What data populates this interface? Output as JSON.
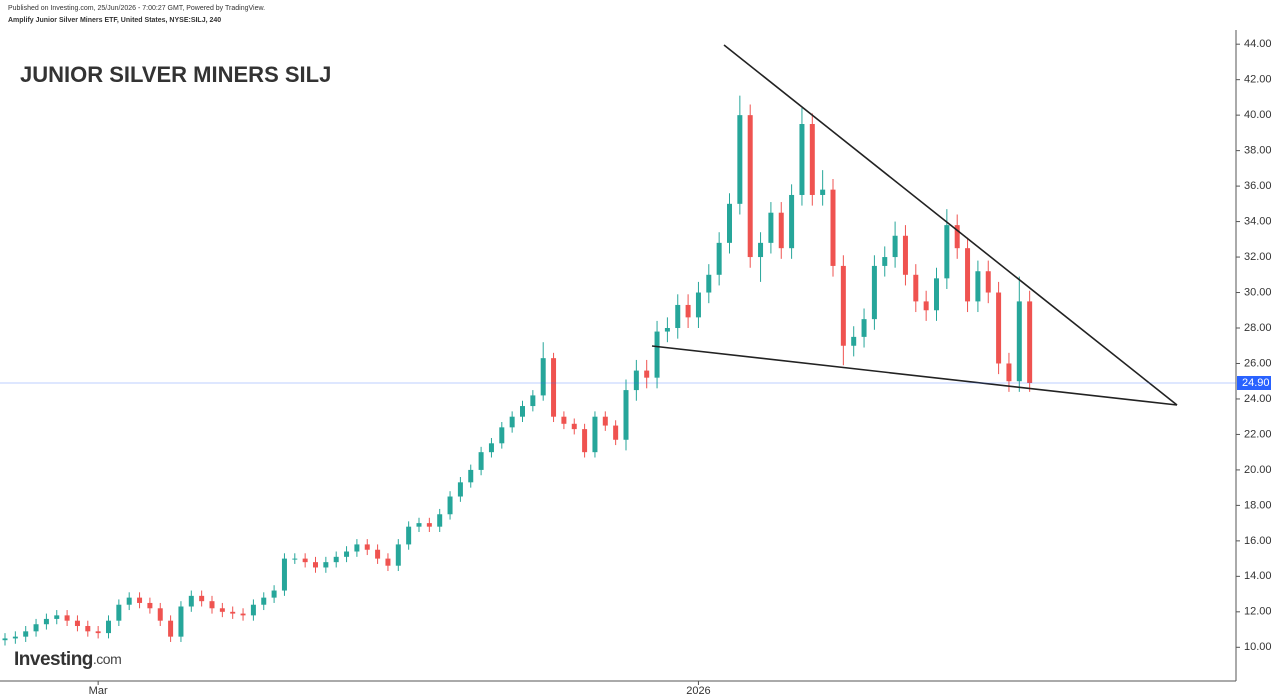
{
  "header": {
    "published": "Published on Investing.com, 25/Jun/2026 - 7:00:27 GMT, Powered by TradingView.",
    "instrument": "Amplify Junior Silver Miners ETF, United States, NYSE:SILJ, 240"
  },
  "logo": {
    "brand": "Investing",
    "suffix": ".com"
  },
  "chart_data": {
    "type": "candlestick",
    "title": "JUNIOR SILVER MINERS SILJ",
    "categories": [
      null,
      null,
      null,
      null,
      null,
      null,
      null,
      null,
      null,
      "Mar",
      null,
      null,
      null,
      null,
      null,
      null,
      null,
      null,
      null,
      null,
      null,
      null,
      null,
      null,
      null,
      null,
      null,
      null,
      null,
      null,
      null,
      null,
      null,
      null,
      null,
      null,
      null,
      null,
      null,
      null,
      null,
      null,
      null,
      null,
      null,
      null,
      null,
      null,
      null,
      null,
      null,
      null,
      null,
      null,
      null,
      null,
      null,
      null,
      null,
      null,
      null,
      null,
      null,
      null,
      null,
      null,
      null,
      "2026",
      null,
      null,
      null,
      null,
      null,
      null,
      null,
      null,
      null,
      null,
      null,
      null,
      null,
      null,
      null,
      null,
      null,
      null,
      null,
      null,
      null,
      null,
      null,
      null,
      null,
      null,
      null,
      null,
      null,
      null,
      null,
      null
    ],
    "open": [
      10.4,
      10.5,
      10.6,
      10.9,
      11.3,
      11.6,
      11.8,
      11.5,
      11.2,
      10.9,
      10.8,
      11.5,
      12.4,
      12.8,
      12.5,
      12.2,
      11.5,
      10.6,
      12.3,
      12.9,
      12.6,
      12.2,
      12.0,
      11.9,
      11.8,
      12.4,
      12.8,
      13.2,
      15.0,
      15.0,
      14.8,
      14.5,
      14.8,
      15.1,
      15.4,
      15.8,
      15.5,
      15.0,
      14.6,
      15.8,
      16.8,
      17.0,
      16.8,
      17.5,
      18.5,
      19.3,
      20.0,
      21.0,
      21.5,
      22.4,
      23.0,
      23.6,
      24.2,
      26.3,
      23.0,
      22.6,
      22.3,
      21.0,
      23.0,
      22.5,
      21.7,
      24.5,
      25.6,
      25.2,
      27.8,
      28.0,
      29.3,
      28.6,
      30.0,
      31.0,
      32.8,
      35.0,
      40.0,
      32.0,
      32.8,
      34.5,
      32.5,
      35.5,
      39.5,
      35.5,
      35.8,
      31.5,
      27.0,
      27.5,
      28.5,
      31.5,
      32.0,
      33.2,
      31.0,
      29.5,
      29.0,
      30.8,
      33.8,
      32.5,
      29.5,
      31.2,
      30.0,
      26.0,
      25.0,
      29.5
    ],
    "high": [
      10.8,
      10.9,
      11.2,
      11.6,
      11.9,
      12.1,
      12.1,
      11.8,
      11.5,
      11.2,
      11.8,
      12.7,
      13.1,
      13.1,
      12.8,
      12.5,
      11.8,
      12.6,
      13.2,
      13.2,
      12.9,
      12.5,
      12.3,
      12.2,
      12.7,
      13.1,
      13.5,
      15.3,
      15.3,
      15.3,
      15.1,
      15.1,
      15.4,
      15.7,
      16.1,
      16.1,
      15.8,
      15.3,
      16.1,
      17.1,
      17.3,
      17.3,
      17.8,
      18.8,
      19.6,
      20.3,
      21.3,
      21.8,
      22.7,
      23.3,
      23.9,
      24.5,
      27.2,
      26.6,
      23.3,
      22.9,
      22.6,
      23.3,
      23.3,
      22.8,
      25.1,
      26.2,
      26.2,
      28.4,
      28.6,
      29.9,
      29.9,
      30.6,
      31.6,
      33.4,
      35.6,
      41.1,
      40.6,
      33.4,
      35.1,
      35.1,
      36.1,
      40.4,
      40.1,
      36.9,
      36.4,
      32.1,
      28.1,
      29.1,
      32.1,
      32.6,
      34.0,
      33.8,
      31.6,
      30.1,
      31.4,
      34.7,
      34.4,
      33.1,
      31.8,
      31.8,
      30.6,
      26.6,
      30.9,
      30.1
    ],
    "low": [
      10.1,
      10.2,
      10.3,
      10.6,
      11.0,
      11.3,
      11.2,
      10.9,
      10.6,
      10.5,
      10.5,
      11.2,
      12.1,
      12.2,
      11.9,
      11.2,
      10.3,
      10.3,
      12.0,
      12.3,
      11.9,
      11.7,
      11.6,
      11.5,
      11.5,
      12.1,
      12.5,
      12.9,
      14.7,
      14.5,
      14.2,
      14.2,
      14.5,
      14.8,
      15.1,
      15.2,
      14.7,
      14.3,
      14.3,
      15.5,
      16.5,
      16.5,
      16.5,
      17.2,
      18.2,
      19.0,
      19.7,
      20.7,
      21.2,
      22.1,
      22.7,
      23.3,
      23.9,
      22.7,
      22.3,
      22.0,
      20.7,
      20.7,
      22.2,
      21.4,
      21.1,
      23.9,
      24.6,
      24.6,
      27.2,
      27.4,
      28.0,
      28.0,
      29.4,
      30.4,
      32.2,
      34.4,
      31.4,
      30.6,
      32.2,
      31.9,
      31.9,
      34.9,
      34.9,
      34.9,
      30.9,
      25.9,
      26.4,
      26.9,
      27.9,
      30.9,
      31.4,
      30.4,
      28.9,
      28.4,
      28.4,
      30.2,
      31.9,
      28.9,
      28.9,
      29.4,
      25.4,
      24.4,
      24.4,
      24.4
    ],
    "close": [
      10.5,
      10.6,
      10.9,
      11.3,
      11.6,
      11.8,
      11.5,
      11.2,
      10.9,
      10.8,
      11.5,
      12.4,
      12.8,
      12.5,
      12.2,
      11.5,
      10.6,
      12.3,
      12.9,
      12.6,
      12.2,
      12.0,
      11.9,
      11.8,
      12.4,
      12.8,
      13.2,
      15.0,
      15.0,
      14.8,
      14.5,
      14.8,
      15.1,
      15.4,
      15.8,
      15.5,
      15.0,
      14.6,
      15.8,
      16.8,
      17.0,
      16.8,
      17.5,
      18.5,
      19.3,
      20.0,
      21.0,
      21.5,
      22.4,
      23.0,
      23.6,
      24.2,
      26.3,
      23.0,
      22.6,
      22.3,
      21.0,
      23.0,
      22.5,
      21.7,
      24.5,
      25.6,
      25.2,
      27.8,
      28.0,
      29.3,
      28.6,
      30.0,
      31.0,
      32.8,
      35.0,
      40.0,
      32.0,
      32.8,
      34.5,
      32.5,
      35.5,
      39.5,
      35.5,
      35.8,
      31.5,
      27.0,
      27.5,
      28.5,
      31.5,
      32.0,
      33.2,
      31.0,
      29.5,
      29.0,
      30.8,
      33.8,
      32.5,
      29.5,
      31.2,
      30.0,
      26.0,
      25.0,
      29.5,
      24.9
    ],
    "up_color": "#26a69a",
    "down_color": "#ef5350",
    "ylim": [
      8.1,
      44.8
    ],
    "yticks": [
      {
        "value": 10,
        "label": "10.00"
      },
      {
        "value": 12,
        "label": "12.00"
      },
      {
        "value": 14,
        "label": "14.00"
      },
      {
        "value": 16,
        "label": "16.00"
      },
      {
        "value": 18,
        "label": "18.00"
      },
      {
        "value": 20,
        "label": "20.00"
      },
      {
        "value": 22,
        "label": "22.00"
      },
      {
        "value": 24,
        "label": "24.00"
      },
      {
        "value": 26,
        "label": "26.00"
      },
      {
        "value": 28,
        "label": "28.00"
      },
      {
        "value": 30,
        "label": "30.00"
      },
      {
        "value": 32,
        "label": "32.00"
      },
      {
        "value": 34,
        "label": "34.00"
      },
      {
        "value": 36,
        "label": "36.00"
      },
      {
        "value": 38,
        "label": "38.00"
      },
      {
        "value": 40,
        "label": "40.00"
      },
      {
        "value": 42,
        "label": "42.00"
      },
      {
        "value": 44,
        "label": "44.00"
      }
    ],
    "last_price": {
      "value": 24.9,
      "label": "24.90"
    },
    "last_price_color": "#2962ff",
    "grid": false
  }
}
